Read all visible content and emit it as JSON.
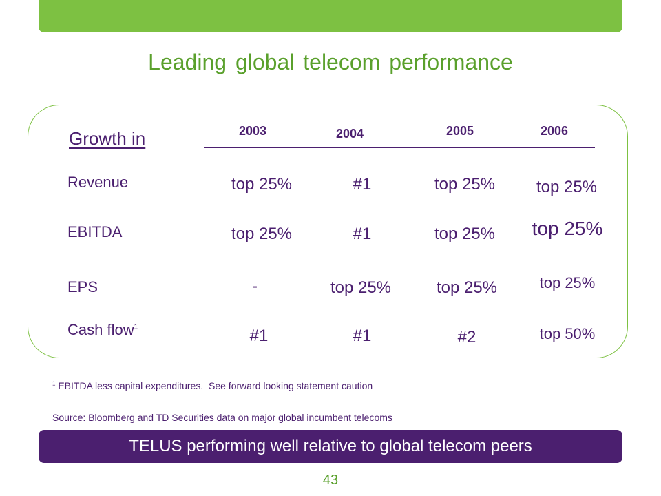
{
  "title": "Leading global telecom performance",
  "growth_label": "Growth in",
  "years": [
    "2003",
    "2004",
    "2005",
    "2006"
  ],
  "rows": [
    {
      "label": "Revenue",
      "values": [
        "top 25%",
        "#1",
        "top 25%",
        "top 25%"
      ]
    },
    {
      "label": "EBITDA",
      "values": [
        "top 25%",
        "#1",
        "top 25%",
        "top 25%"
      ]
    },
    {
      "label": "EPS",
      "values": [
        "-",
        "top 25%",
        "top 25%",
        "top 25%"
      ]
    },
    {
      "label": "Cash flow",
      "label_sup": "1",
      "values": [
        "#1",
        "#1",
        "#2",
        "top 50%"
      ]
    }
  ],
  "footnote": {
    "marker": "1",
    "text": "EBITDA less capital expenditures.  See forward looking statement caution"
  },
  "source": "Source: Bloomberg and TD Securities data on major global incumbent telecoms",
  "banner": "TELUS performing well relative to global telecom peers",
  "page_number": "43",
  "colors": {
    "green": "#7dc142",
    "purple": "#4b1f6f",
    "title_green": "#5aa02c"
  }
}
